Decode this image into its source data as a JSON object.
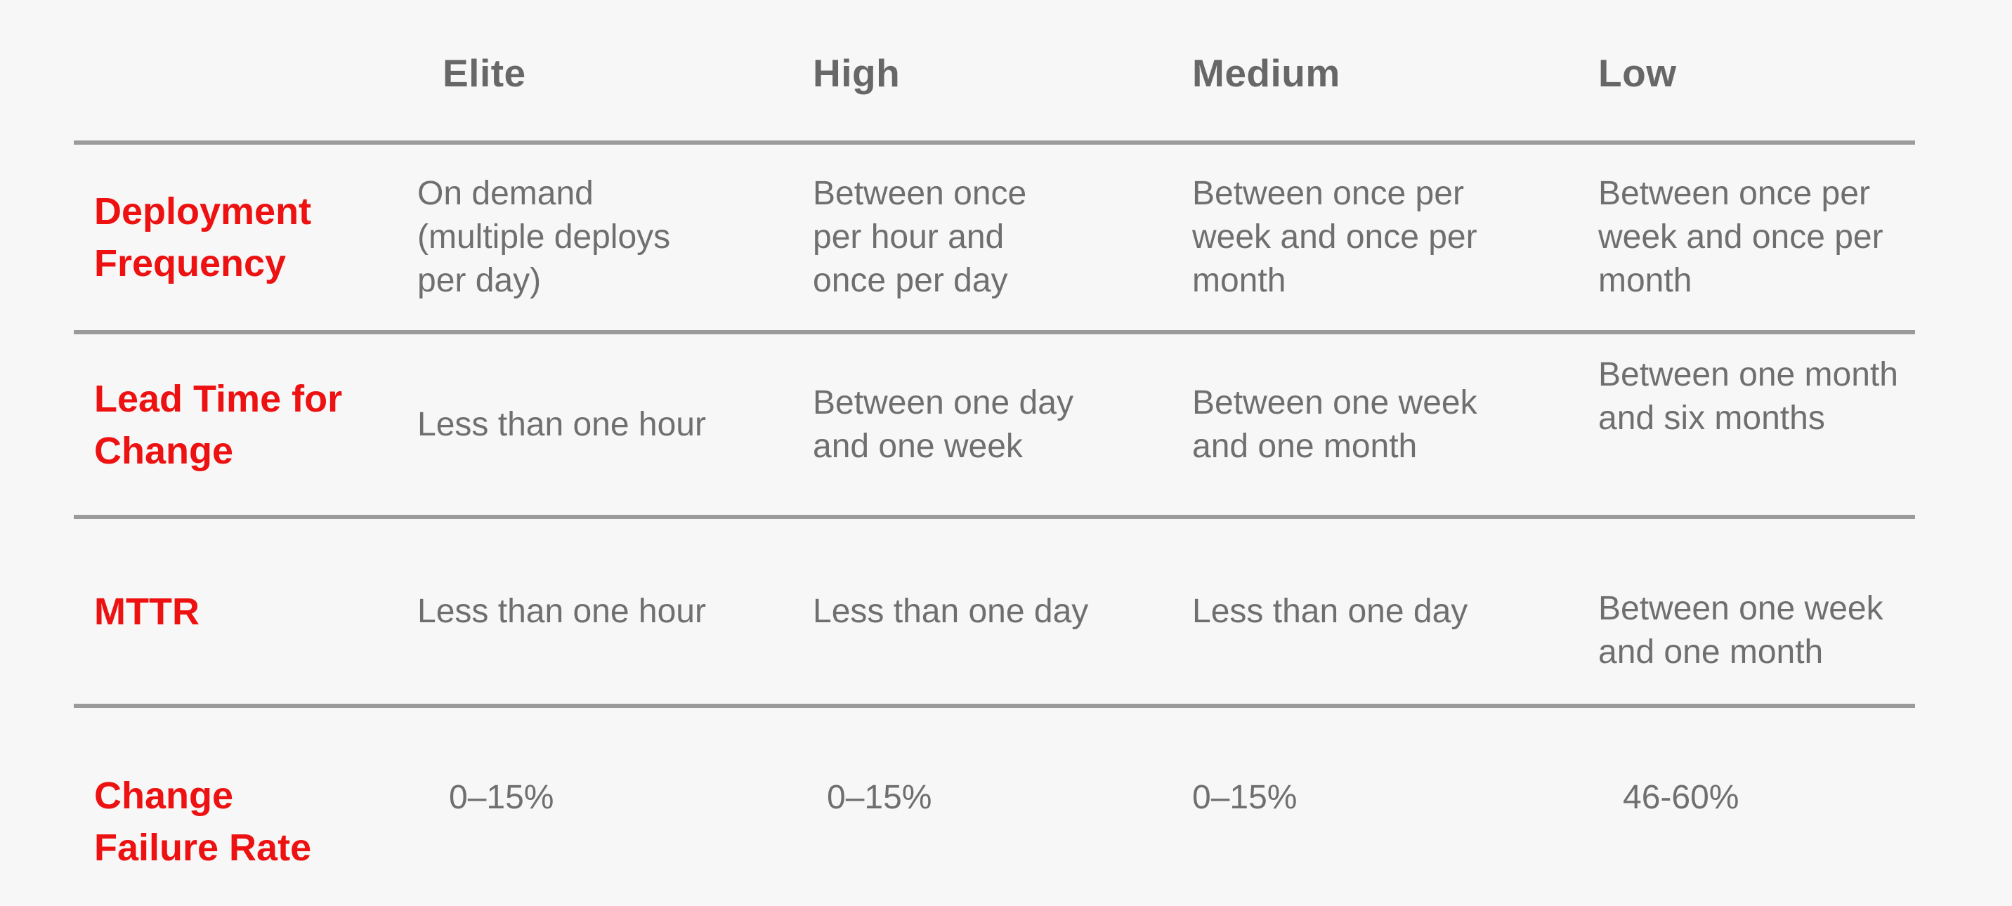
{
  "table": {
    "title_semantic": "DORA software delivery performance metrics",
    "colors": {
      "background": "#f7f7f7",
      "metric_label_red": "#ed1111",
      "body_text_gray": "#6f6f6f",
      "header_text_gray": "#676767",
      "rule_gray": "#9b9b9b"
    },
    "columns": [
      "Elite",
      "High",
      "Medium",
      "Low"
    ],
    "rows": [
      {
        "metric": "Deployment\nFrequency",
        "values": [
          "On demand\n(multiple deploys\nper day)",
          "Between once\nper hour and\nonce per day",
          "Between once per\nweek and once per\nmonth",
          "Between once per\nweek and once per\nmonth"
        ]
      },
      {
        "metric": "Lead Time for\nChange",
        "values": [
          "Less than one hour",
          "Between one day\nand one week",
          "Between one week\nand one month",
          "Between one month\nand six months"
        ]
      },
      {
        "metric": "MTTR",
        "values": [
          "Less than one hour",
          "Less than one day",
          "Less than one day",
          "Between one week\nand one month"
        ]
      },
      {
        "metric": "Change\nFailure Rate",
        "values": [
          "0–15%",
          "0–15%",
          "0–15%",
          "46-60%"
        ]
      }
    ]
  }
}
